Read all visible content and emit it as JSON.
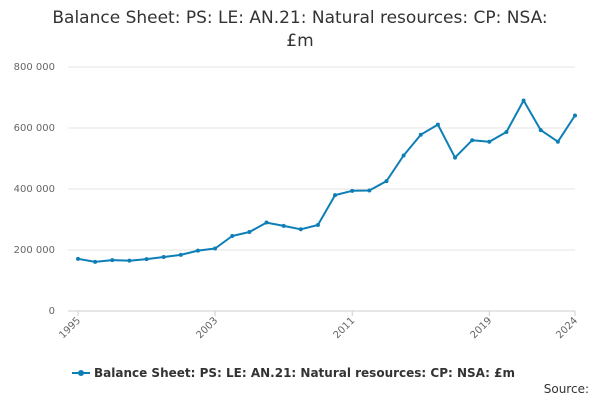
{
  "title_lines": [
    "Balance Sheet: PS: LE: AN.21: Natural resources: CP: NSA:",
    "£m"
  ],
  "source_label": "Source:",
  "colors": {
    "series": "#0e7fb6"
  },
  "chart_data": {
    "type": "line",
    "title": "Balance Sheet: PS: LE: AN.21: Natural resources: CP: NSA: £m",
    "xlabel": "",
    "ylabel": "",
    "ylim": [
      0,
      800000
    ],
    "yticks": [
      0,
      200000,
      400000,
      600000,
      800000
    ],
    "ytick_labels": [
      "0",
      "200 000",
      "400 000",
      "600 000",
      "800 000"
    ],
    "xticks": [
      1995,
      2003,
      2011,
      2019,
      2024
    ],
    "x": [
      1995,
      1996,
      1997,
      1998,
      1999,
      2000,
      2001,
      2002,
      2003,
      2004,
      2005,
      2006,
      2007,
      2008,
      2009,
      2010,
      2011,
      2012,
      2013,
      2014,
      2015,
      2016,
      2017,
      2018,
      2019,
      2020,
      2021,
      2022,
      2023,
      2024
    ],
    "series": [
      {
        "name": "Balance Sheet: PS: LE: AN.21: Natural resources: CP: NSA: £m",
        "values": [
          171000,
          161000,
          167000,
          165000,
          170000,
          177000,
          184000,
          198000,
          205000,
          246000,
          259000,
          290000,
          279000,
          268000,
          282000,
          380000,
          394000,
          395000,
          426000,
          510000,
          578000,
          611000,
          503000,
          560000,
          555000,
          587000,
          690000,
          593000,
          555000,
          641000
        ]
      }
    ],
    "grid": true,
    "legend": "bottom"
  }
}
